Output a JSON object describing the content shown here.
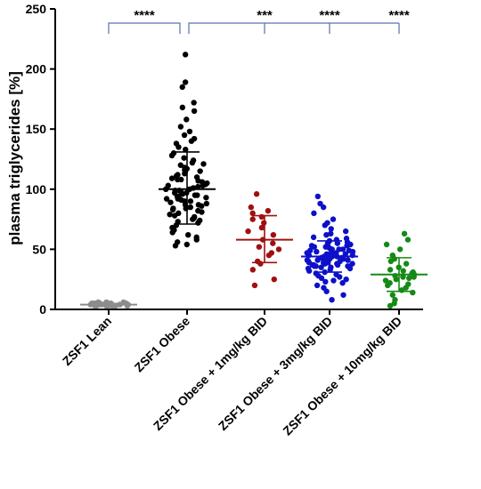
{
  "chart_data": {
    "type": "scatter",
    "title": "",
    "ylabel": "plasma triglycerides [%]",
    "xlabel": "",
    "ylim": [
      0,
      250
    ],
    "yticks": [
      0,
      50,
      100,
      150,
      200,
      250
    ],
    "grid": false,
    "legend": "none",
    "categories": [
      "ZSF1 Lean",
      "ZSF1 Obese",
      "ZSF1 Obese + 1mg/kg BID",
      "ZSF1 Obese + 3mg/kg BID",
      "ZSF1 Obese + 10mg/kg BID"
    ],
    "colors": [
      "#8c8c8c",
      "#000000",
      "#a01010",
      "#0d10c8",
      "#158a15"
    ],
    "groups": [
      {
        "category": "ZSF1 Lean",
        "mean": 4,
        "sd_low": 3,
        "sd_high": 5,
        "values": [
          3,
          4,
          5,
          4,
          3,
          4,
          5,
          6,
          3,
          4,
          5,
          4,
          3,
          5,
          4,
          6,
          3,
          4,
          5,
          4,
          3,
          4,
          5,
          3,
          4,
          6,
          4,
          3,
          5,
          4,
          3,
          4,
          5,
          4,
          3,
          4,
          5,
          4,
          3,
          4
        ]
      },
      {
        "category": "ZSF1 Obese",
        "mean": 100,
        "sd_low": 71,
        "sd_high": 131,
        "values": [
          212,
          189,
          185,
          172,
          168,
          165,
          158,
          152,
          148,
          145,
          142,
          140,
          138,
          135,
          133,
          130,
          128,
          126,
          124,
          122,
          121,
          120,
          118,
          117,
          116,
          115,
          114,
          113,
          112,
          111,
          110,
          109,
          108,
          107,
          106,
          105,
          104,
          103,
          102,
          101,
          100,
          100,
          99,
          98,
          97,
          96,
          95,
          95,
          94,
          93,
          92,
          91,
          90,
          90,
          89,
          88,
          87,
          86,
          85,
          84,
          83,
          82,
          81,
          80,
          79,
          78,
          77,
          76,
          75,
          74,
          73,
          72,
          70,
          68,
          66,
          64,
          62,
          60,
          58,
          56,
          54,
          53,
          92,
          97,
          103,
          108,
          99,
          94,
          87,
          84
        ]
      },
      {
        "category": "ZSF1 Obese + 1mg/kg BID",
        "mean": 58,
        "sd_low": 39,
        "sd_high": 78,
        "values": [
          96,
          85,
          82,
          80,
          77,
          75,
          72,
          68,
          65,
          62,
          58,
          55,
          52,
          50,
          47,
          45,
          40,
          38,
          33,
          25,
          20
        ]
      },
      {
        "category": "ZSF1 Obese + 3mg/kg BID",
        "mean": 44,
        "sd_low": 31,
        "sd_high": 57,
        "values": [
          94,
          88,
          85,
          80,
          75,
          72,
          70,
          67,
          65,
          63,
          62,
          60,
          59,
          58,
          57,
          56,
          55,
          55,
          54,
          53,
          52,
          51,
          50,
          50,
          49,
          48,
          48,
          47,
          46,
          46,
          45,
          45,
          44,
          44,
          43,
          43,
          42,
          42,
          41,
          41,
          40,
          40,
          39,
          39,
          38,
          38,
          37,
          37,
          36,
          36,
          35,
          35,
          34,
          34,
          33,
          32,
          31,
          30,
          29,
          28,
          27,
          26,
          25,
          24,
          23,
          22,
          20,
          18,
          15,
          12,
          8,
          49,
          52,
          44,
          41,
          38,
          46,
          43,
          47,
          39,
          42,
          45,
          50,
          36,
          53,
          40,
          48,
          44,
          41,
          37
        ]
      },
      {
        "category": "ZSF1 Obese + 10mg/kg BID",
        "mean": 29,
        "sd_low": 15,
        "sd_high": 43,
        "values": [
          63,
          58,
          54,
          50,
          45,
          42,
          40,
          38,
          35,
          33,
          32,
          30,
          29,
          28,
          27,
          26,
          25,
          24,
          22,
          20,
          18,
          16,
          14,
          12,
          8,
          5,
          3,
          31,
          27,
          21
        ]
      }
    ],
    "significance": [
      {
        "label": "****",
        "from": "ZSF1 Lean",
        "to": "ZSF1 Obese"
      },
      {
        "label": "***",
        "from": "ZSF1 Obese",
        "to": "ZSF1 Obese + 1mg/kg BID"
      },
      {
        "label": "****",
        "from": "ZSF1 Obese",
        "to": "ZSF1 Obese + 3mg/kg BID"
      },
      {
        "label": "****",
        "from": "ZSF1 Obese",
        "to": "ZSF1 Obese + 10mg/kg BID"
      }
    ]
  }
}
